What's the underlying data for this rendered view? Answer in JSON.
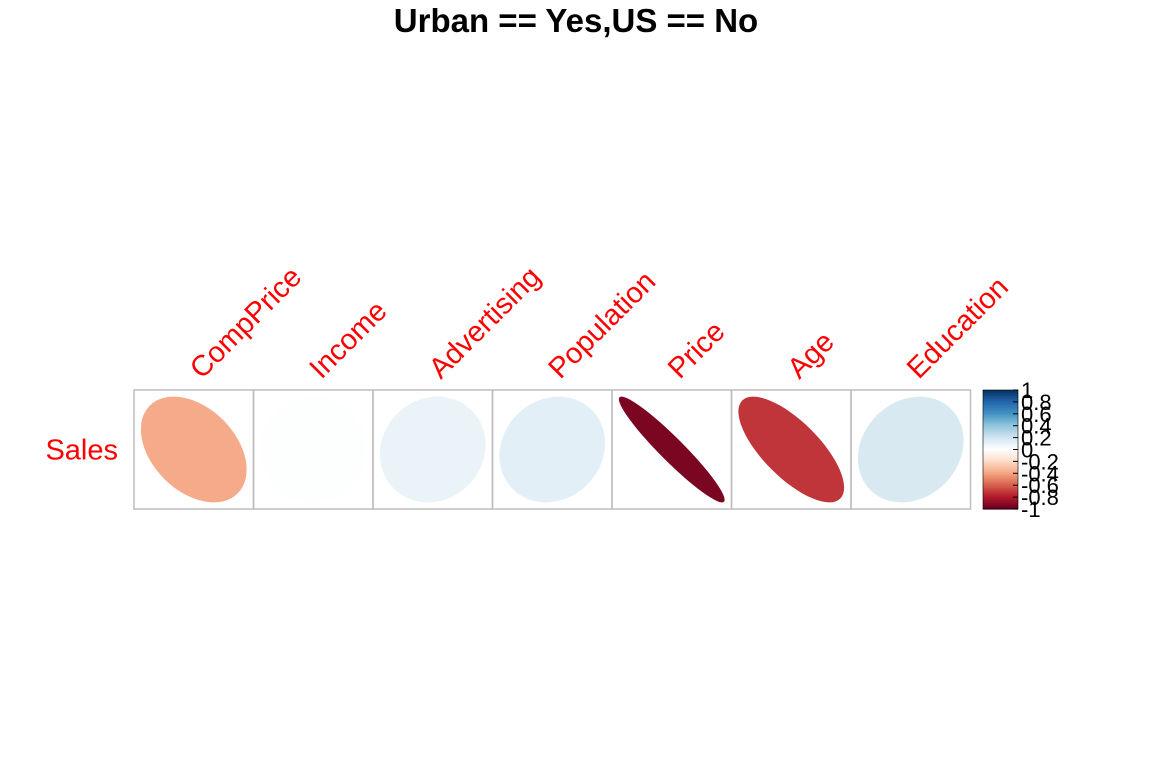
{
  "chart_data": {
    "type": "heatmap",
    "title": "Urban == Yes,US == No",
    "method": "ellipse",
    "rows": [
      "Sales"
    ],
    "columns": [
      "CompPrice",
      "Income",
      "Advertising",
      "Population",
      "Price",
      "Age",
      "Education"
    ],
    "values": [
      [
        -0.38,
        0.01,
        0.09,
        0.12,
        -0.95,
        -0.72,
        0.17
      ]
    ],
    "colorbar": {
      "ticks": [
        "1",
        "0.8",
        "0.6",
        "0.4",
        "0.2",
        "0",
        "-0.2",
        "-0.4",
        "-0.6",
        "-0.8",
        "-1"
      ],
      "range": [
        -1,
        1
      ]
    },
    "colors": {
      "label": "#ff0000",
      "grid": "#bebebe",
      "palette": [
        "#67001F",
        "#B2182B",
        "#D6604D",
        "#F4A582",
        "#FDDBC7",
        "#FFFFFF",
        "#D1E5F0",
        "#92C5DE",
        "#4393C3",
        "#2166AC",
        "#053061"
      ]
    }
  }
}
